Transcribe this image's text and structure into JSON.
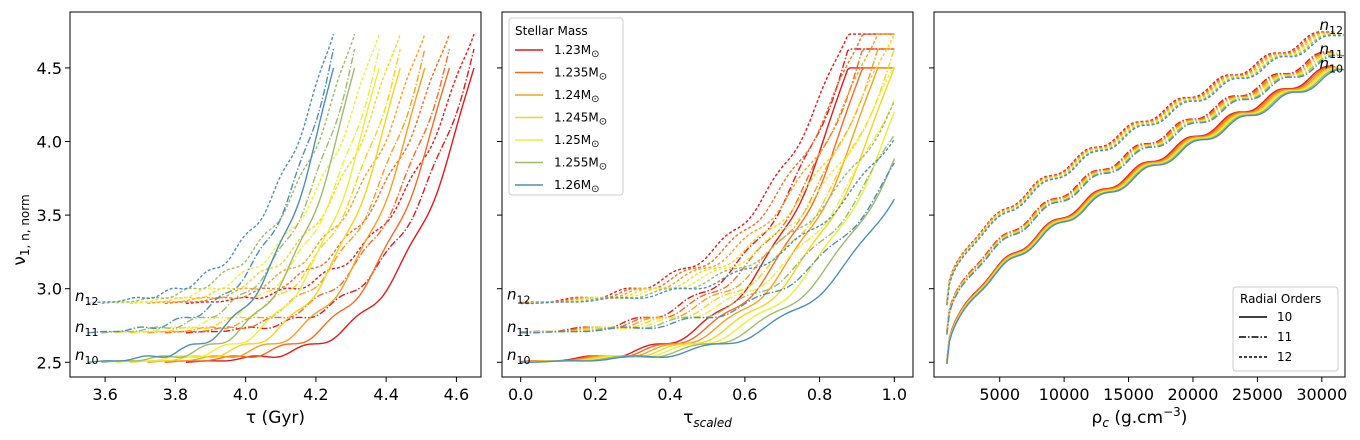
{
  "figure": {
    "ylabel": "ν1,n,norm",
    "ylabel_main": "ν",
    "ylabel_sub": "1, n, norm"
  },
  "chart_data": [
    {
      "type": "line",
      "panel": "age",
      "xlabel": "τ (Gyr)",
      "xlim": [
        3.5,
        4.67
      ],
      "ylim": [
        2.4,
        4.88
      ],
      "xticks": [
        3.6,
        3.8,
        4.0,
        4.2,
        4.4,
        4.6
      ],
      "xtick_labels": [
        "3.6",
        "3.8",
        "4.0",
        "4.2",
        "4.4",
        "4.6"
      ],
      "yticks": [
        2.5,
        3.0,
        3.5,
        4.0,
        4.5
      ],
      "ytick_labels": [
        "2.5",
        "3.0",
        "3.5",
        "4.0",
        "4.5"
      ],
      "order_labels": [
        {
          "text": "n10",
          "base": "n",
          "sub": "10",
          "y": 2.55
        },
        {
          "text": "n11",
          "base": "n",
          "sub": "11",
          "y": 2.74
        },
        {
          "text": "n12",
          "base": "n",
          "sub": "12",
          "y": 2.95
        }
      ],
      "stars": [
        {
          "mass": 1.23,
          "start": 3.83,
          "end": 4.65,
          "color": "#e31a1c"
        },
        {
          "mass": 1.235,
          "start": 3.77,
          "end": 4.58,
          "color": "#f46d23"
        },
        {
          "mass": 1.24,
          "start": 3.72,
          "end": 4.51,
          "color": "#f7a020"
        },
        {
          "mass": 1.245,
          "start": 3.67,
          "end": 4.44,
          "color": "#f7d51a"
        },
        {
          "mass": 1.25,
          "start": 3.63,
          "end": 4.38,
          "color": "#ecef3a"
        },
        {
          "mass": 1.255,
          "start": 3.59,
          "end": 4.31,
          "color": "#9dbb6a"
        },
        {
          "mass": 1.26,
          "start": 3.55,
          "end": 4.25,
          "color": "#4e8fb8"
        }
      ]
    },
    {
      "type": "line",
      "panel": "scaled",
      "xlabel": "τscaled",
      "xlabel_main": "τ",
      "xlabel_sub": "scaled",
      "xlim": [
        -0.05,
        1.05
      ],
      "ylim": [
        2.4,
        4.88
      ],
      "xticks": [
        0.0,
        0.2,
        0.4,
        0.6,
        0.8,
        1.0
      ],
      "xtick_labels": [
        "0.0",
        "0.2",
        "0.4",
        "0.6",
        "0.8",
        "1.0"
      ],
      "yticks": [
        2.5,
        3.0,
        3.5,
        4.0,
        4.5
      ],
      "order_labels": [
        {
          "text": "n10",
          "base": "n",
          "sub": "10",
          "y": 2.55
        },
        {
          "text": "n11",
          "base": "n",
          "sub": "11",
          "y": 2.74
        },
        {
          "text": "n12",
          "base": "n",
          "sub": "12",
          "y": 2.96
        }
      ],
      "legend": {
        "title": "Stellar Mass",
        "position": "top-left",
        "entries": [
          {
            "label": "1.23M",
            "sym": "⊙",
            "color": "#e31a1c"
          },
          {
            "label": "1.235M",
            "sym": "⊙",
            "color": "#f46d23"
          },
          {
            "label": "1.24M",
            "sym": "⊙",
            "color": "#f7a020"
          },
          {
            "label": "1.245M",
            "sym": "⊙",
            "color": "#f7d51a"
          },
          {
            "label": "1.25M",
            "sym": "⊙",
            "color": "#ecef3a"
          },
          {
            "label": "1.255M",
            "sym": "⊙",
            "color": "#9dbb6a"
          },
          {
            "label": "1.26M",
            "sym": "⊙",
            "color": "#4e8fb8"
          }
        ]
      }
    },
    {
      "type": "line",
      "panel": "density",
      "xlabel": "ρc (g.cm−3)",
      "xlabel_main": "ρ",
      "xlabel_sub": "c",
      "xlabel_unit": " (g.cm",
      "xlabel_exp": "−3",
      "xlabel_close": ")",
      "xlim": [
        -100,
        31800
      ],
      "ylim": [
        2.4,
        4.88
      ],
      "xticks": [
        5000,
        10000,
        15000,
        20000,
        25000,
        30000
      ],
      "xtick_labels": [
        "5000",
        "10000",
        "15000",
        "20000",
        "25000",
        "30000"
      ],
      "yticks": [
        2.5,
        3.0,
        3.5,
        4.0,
        4.5
      ],
      "order_labels": [
        {
          "text": "n12",
          "base": "n",
          "sub": "12",
          "y": 4.79
        },
        {
          "text": "n11",
          "base": "n",
          "sub": "11",
          "y": 4.63
        },
        {
          "text": "n10",
          "base": "n",
          "sub": "10",
          "y": 4.53
        }
      ],
      "legend": {
        "title": "Radial Orders",
        "position": "bottom-right",
        "entries": [
          {
            "label": "10",
            "dash": "solid"
          },
          {
            "label": "11",
            "dash": "dashdot"
          },
          {
            "label": "12",
            "dash": "dashed"
          }
        ]
      }
    }
  ]
}
